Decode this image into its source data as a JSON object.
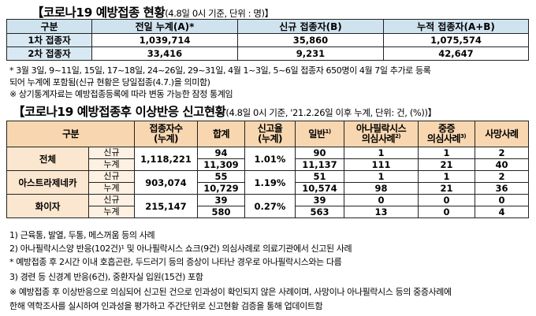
{
  "title1": {
    "main": "【코로나19 예방접종 현황",
    "sub": "(4.8일 0시 기준, 단위 : 명)】"
  },
  "table1": {
    "headers": [
      "구분",
      "전일 누계(A)*",
      "신규 접종자(B)",
      "누적 접종자(A+B)"
    ],
    "rows": [
      {
        "label": "1차 접종자",
        "prev": "1,039,714",
        "new": "35,860",
        "cum": "1,075,574"
      },
      {
        "label": "2차 접종자",
        "prev": "33,416",
        "new": "9,231",
        "cum": "42,647"
      }
    ]
  },
  "notes1": [
    "* 3월 3일, 9~11일, 15일, 17~18일, 24~26일, 29~31일, 4월 1~3일, 5~6일 접종자 650명이 4월 7일 추가로 등록",
    "  되어 누계에 포함됨(신규 현황은 당일접종(4.7.)을 의미함)",
    "※ 상기통계자료는 예방접종등록에 따라 변동 가능한 잠정 통계임"
  ],
  "title2": {
    "main": "【코로나19 예방접종후 이상반응 신고현황",
    "sub": "(4.8일 0시 기준, '21.2.26일 이후 누계, 단위: 건, (%))】"
  },
  "table2": {
    "headers": {
      "category": "구분",
      "vaccinated": [
        "접종자수",
        "(누계)"
      ],
      "total": "합계",
      "rate": [
        "신고율",
        "(누계)"
      ],
      "general": "일반",
      "general_sup": "1)",
      "anaphylaxis": [
        "아나필락시스",
        "의심사례"
      ],
      "anaphylaxis_sup": "2)",
      "severe": [
        "중증",
        "의심사례"
      ],
      "severe_sup": "3)",
      "death": "사망사례"
    },
    "groups": [
      {
        "name": "전체",
        "vaccinated": "1,118,221",
        "rate": "1.01%",
        "rows": [
          {
            "kind": "신규",
            "total": "94",
            "general": "90",
            "anaphylaxis": "1",
            "severe": "1",
            "death": "2"
          },
          {
            "kind": "누계",
            "total": "11,309",
            "general": "11,137",
            "anaphylaxis": "111",
            "severe": "21",
            "death": "40"
          }
        ]
      },
      {
        "name": "아스트라제네카",
        "vaccinated": "903,074",
        "rate": "1.19%",
        "rows": [
          {
            "kind": "신규",
            "total": "55",
            "general": "51",
            "anaphylaxis": "1",
            "severe": "1",
            "death": "2"
          },
          {
            "kind": "누계",
            "total": "10,729",
            "general": "10,574",
            "anaphylaxis": "98",
            "severe": "21",
            "death": "36"
          }
        ]
      },
      {
        "name": "화이자",
        "vaccinated": "215,147",
        "rate": "0.27%",
        "rows": [
          {
            "kind": "신규",
            "total": "39",
            "general": "39",
            "anaphylaxis": "0",
            "severe": "0",
            "death": "0"
          },
          {
            "kind": "누계",
            "total": "580",
            "general": "563",
            "anaphylaxis": "13",
            "severe": "0",
            "death": "4"
          }
        ]
      }
    ]
  },
  "footnotes": [
    "1) 근육통, 발열, 두통, 메스꺼움 등의 사례",
    "2) 아나필락시스양 반응(102건)¹ 및 아나필락시스 쇼크(9건) 의심사례로 의료기관에서 신고된 사례",
    "  * 예방접종 후 2시간 이내 호흡곤란, 두드러기 등의 증상이 나타난 경우로 아나필락시스와는 다름",
    "3) 경련 등 신경계 반응(6건), 중환자실 입원(15건) 포함",
    "※ 예방접종 후 이상반응으로 의심되어 신고된 건으로 인과성이 확인되지 않은 사례이며, 사망이나 아나필락시스 등의 중증사례에",
    "   한해 역학조사를 실시하여 인과성을 평가하고 주간단위로 신고현황 검증을 통해 업데이트함"
  ]
}
